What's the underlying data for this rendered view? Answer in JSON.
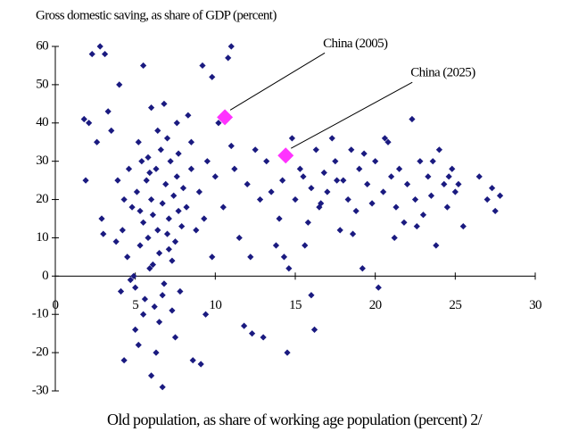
{
  "chart_data": {
    "type": "scatter",
    "title": "Gross domestic saving, as share of GDP (percent)",
    "x_label": "Old population, as share of working age population (percent) 2/",
    "xlim": [
      0,
      30
    ],
    "ylim": [
      -30,
      60
    ],
    "xticks": [
      0,
      5,
      10,
      15,
      20,
      25,
      30
    ],
    "yticks": [
      -30,
      -20,
      -10,
      0,
      10,
      20,
      30,
      40,
      50,
      60
    ],
    "color": "#1a1a80",
    "highlight_color": "#ff33ff",
    "points": [
      [
        4.2,
        12
      ],
      [
        4.5,
        5
      ],
      [
        4.8,
        18
      ],
      [
        5.0,
        -3
      ],
      [
        5.1,
        22
      ],
      [
        5.3,
        8
      ],
      [
        5.4,
        30
      ],
      [
        5.5,
        14
      ],
      [
        5.6,
        -6
      ],
      [
        5.7,
        25
      ],
      [
        5.8,
        10
      ],
      [
        5.9,
        2
      ],
      [
        6.0,
        20
      ],
      [
        6.1,
        16
      ],
      [
        6.2,
        -8
      ],
      [
        6.3,
        28
      ],
      [
        6.4,
        12
      ],
      [
        6.5,
        6
      ],
      [
        6.6,
        33
      ],
      [
        6.7,
        19
      ],
      [
        6.8,
        -2
      ],
      [
        6.9,
        24
      ],
      [
        7.0,
        11
      ],
      [
        7.1,
        15
      ],
      [
        7.2,
        30
      ],
      [
        7.3,
        4
      ],
      [
        7.4,
        21
      ],
      [
        7.5,
        9
      ],
      [
        7.6,
        26
      ],
      [
        7.7,
        17
      ],
      [
        7.8,
        -4
      ],
      [
        7.9,
        13
      ],
      [
        8.0,
        23
      ],
      [
        4.6,
        28
      ],
      [
        4.9,
        0
      ],
      [
        5.2,
        35
      ],
      [
        5.5,
        -10
      ],
      [
        5.8,
        31
      ],
      [
        6.1,
        3
      ],
      [
        6.4,
        38
      ],
      [
        6.7,
        -5
      ],
      [
        7.0,
        36
      ],
      [
        7.3,
        -9
      ],
      [
        7.6,
        40
      ],
      [
        4.3,
        20
      ],
      [
        4.7,
        -1
      ],
      [
        5.3,
        17
      ],
      [
        5.9,
        27
      ],
      [
        6.5,
        -12
      ],
      [
        7.1,
        7
      ],
      [
        7.7,
        32
      ],
      [
        8.2,
        18
      ],
      [
        8.5,
        28
      ],
      [
        8.8,
        12
      ],
      [
        4.1,
        -4
      ],
      [
        3.8,
        9
      ],
      [
        3.9,
        25
      ],
      [
        6.0,
        44
      ],
      [
        6.8,
        45
      ],
      [
        5.5,
        55
      ],
      [
        5.2,
        -18
      ],
      [
        6.3,
        -20
      ],
      [
        7.5,
        -16
      ],
      [
        6.0,
        -26
      ],
      [
        6.7,
        -29
      ],
      [
        5.0,
        -14
      ],
      [
        1.8,
        41
      ],
      [
        2.1,
        40
      ],
      [
        1.9,
        25
      ],
      [
        2.3,
        58
      ],
      [
        2.8,
        60
      ],
      [
        3.1,
        58
      ],
      [
        3.0,
        11
      ],
      [
        2.6,
        35
      ],
      [
        3.3,
        43
      ],
      [
        2.9,
        15
      ],
      [
        4.3,
        -22
      ],
      [
        4.0,
        50
      ],
      [
        3.5,
        38
      ],
      [
        8.5,
        35
      ],
      [
        9.0,
        22
      ],
      [
        9.3,
        15
      ],
      [
        9.5,
        30
      ],
      [
        9.8,
        5
      ],
      [
        10.0,
        26
      ],
      [
        10.2,
        40
      ],
      [
        10.5,
        18
      ],
      [
        10.8,
        57
      ],
      [
        11.0,
        60
      ],
      [
        11.2,
        28
      ],
      [
        11.5,
        10
      ],
      [
        11.8,
        -13
      ],
      [
        12.0,
        24
      ],
      [
        12.3,
        -15
      ],
      [
        12.5,
        33
      ],
      [
        12.8,
        20
      ],
      [
        9.2,
        55
      ],
      [
        9.8,
        52
      ],
      [
        8.6,
        -22
      ],
      [
        9.1,
        -23
      ],
      [
        9.4,
        -10
      ],
      [
        8.3,
        42
      ],
      [
        11.0,
        34
      ],
      [
        12.2,
        5
      ],
      [
        13.0,
        -16
      ],
      [
        13.2,
        30
      ],
      [
        13.5,
        22
      ],
      [
        13.8,
        8
      ],
      [
        14.0,
        15
      ],
      [
        14.2,
        25
      ],
      [
        14.5,
        -20
      ],
      [
        14.6,
        2
      ],
      [
        14.8,
        36
      ],
      [
        15.0,
        20
      ],
      [
        15.3,
        28
      ],
      [
        15.5,
        26
      ],
      [
        15.8,
        14
      ],
      [
        16.0,
        23
      ],
      [
        16.2,
        -14
      ],
      [
        16.3,
        33
      ],
      [
        16.5,
        18
      ],
      [
        16.8,
        27
      ],
      [
        17.0,
        22
      ],
      [
        17.3,
        36
      ],
      [
        17.5,
        30
      ],
      [
        17.8,
        12
      ],
      [
        18.0,
        25
      ],
      [
        18.3,
        20
      ],
      [
        18.5,
        33
      ],
      [
        18.8,
        17
      ],
      [
        19.0,
        28
      ],
      [
        19.2,
        2
      ],
      [
        19.5,
        24
      ],
      [
        19.8,
        19
      ],
      [
        20.0,
        30
      ],
      [
        20.2,
        -3
      ],
      [
        20.5,
        22
      ],
      [
        20.8,
        35
      ],
      [
        21.0,
        26
      ],
      [
        21.3,
        18
      ],
      [
        21.5,
        28
      ],
      [
        21.8,
        14
      ],
      [
        22.0,
        24
      ],
      [
        22.3,
        41
      ],
      [
        22.5,
        20
      ],
      [
        22.8,
        30
      ],
      [
        23.0,
        16
      ],
      [
        23.3,
        26
      ],
      [
        23.5,
        21
      ],
      [
        23.8,
        8
      ],
      [
        24.0,
        33
      ],
      [
        24.3,
        24
      ],
      [
        24.5,
        18
      ],
      [
        24.8,
        28
      ],
      [
        25.0,
        22
      ],
      [
        25.5,
        13
      ],
      [
        26.5,
        26
      ],
      [
        27.0,
        20
      ],
      [
        27.3,
        23
      ],
      [
        27.5,
        17
      ],
      [
        27.8,
        21
      ],
      [
        16.0,
        -5
      ],
      [
        14.3,
        5
      ],
      [
        15.6,
        8
      ],
      [
        18.6,
        11
      ],
      [
        21.2,
        10
      ],
      [
        23.6,
        30
      ],
      [
        20.6,
        36
      ],
      [
        19.3,
        32
      ],
      [
        17.6,
        25
      ],
      [
        16.6,
        19
      ],
      [
        22.6,
        13
      ],
      [
        24.6,
        26
      ],
      [
        25.2,
        24
      ]
    ],
    "highlights": [
      {
        "label": "China (2005)",
        "x": 10.6,
        "y": 41.5
      },
      {
        "label": "China (2025)",
        "x": 14.4,
        "y": 31.5
      }
    ]
  }
}
